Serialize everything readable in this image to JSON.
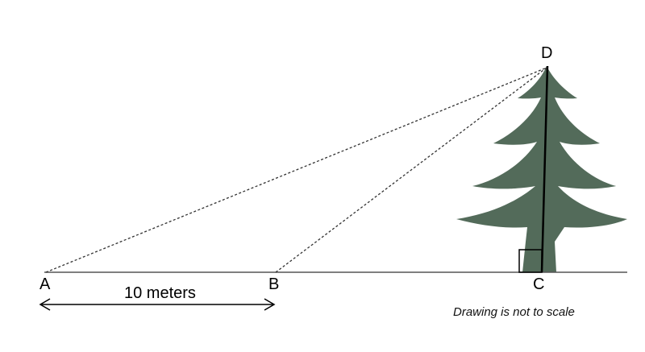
{
  "points": {
    "a": "A",
    "b": "B",
    "c": "C",
    "d": "D"
  },
  "distance_label": "10 meters",
  "note": "Drawing is not to scale",
  "colors": {
    "tree": "#536b5a",
    "lines": "#000000",
    "sightlines": "#333333"
  }
}
